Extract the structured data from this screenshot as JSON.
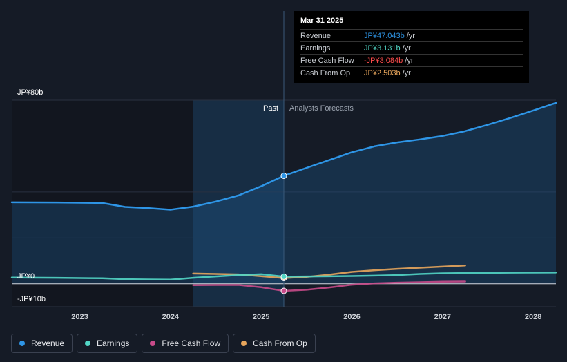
{
  "chart_data": {
    "type": "line",
    "title": "",
    "xlabel": "",
    "ylabel": "",
    "y_ticks": [
      {
        "value": 80,
        "label": "JP¥80b"
      },
      {
        "value": 0,
        "label": "JP¥0"
      },
      {
        "value": -10,
        "label": "-JP¥10b"
      }
    ],
    "ylim": [
      -10,
      80
    ],
    "xlim": [
      2022.25,
      2028.25
    ],
    "x_ticks": [
      2023,
      2024,
      2025,
      2026,
      2027,
      2028
    ],
    "past_label": "Past",
    "forecast_label": "Analysts Forecasts",
    "divider_x": 2025.25,
    "highlight_start_x": 2024.25,
    "series": [
      {
        "name": "Revenue",
        "color": "#2e95e6",
        "points": [
          [
            2022.25,
            35.5
          ],
          [
            2022.75,
            35.4
          ],
          [
            2023.25,
            35.2
          ],
          [
            2023.5,
            33.5
          ],
          [
            2023.75,
            33.0
          ],
          [
            2024.0,
            32.3
          ],
          [
            2024.25,
            33.6
          ],
          [
            2024.5,
            35.8
          ],
          [
            2024.75,
            38.5
          ],
          [
            2025.0,
            42.5
          ],
          [
            2025.25,
            47.043
          ],
          [
            2025.5,
            50.5
          ],
          [
            2025.75,
            53.9
          ],
          [
            2026.0,
            57.3
          ],
          [
            2026.25,
            59.9
          ],
          [
            2026.5,
            61.6
          ],
          [
            2026.75,
            62.9
          ],
          [
            2027.0,
            64.4
          ],
          [
            2027.25,
            66.5
          ],
          [
            2027.5,
            69.3
          ],
          [
            2027.75,
            72.3
          ],
          [
            2028.0,
            75.5
          ],
          [
            2028.25,
            78.8
          ]
        ]
      },
      {
        "name": "Earnings",
        "color": "#52d6c5",
        "points": [
          [
            2022.25,
            2.7
          ],
          [
            2022.75,
            2.6
          ],
          [
            2023.25,
            2.4
          ],
          [
            2023.5,
            2.0
          ],
          [
            2023.75,
            1.9
          ],
          [
            2024.0,
            1.8
          ],
          [
            2024.25,
            2.6
          ],
          [
            2024.5,
            3.2
          ],
          [
            2024.75,
            3.8
          ],
          [
            2025.0,
            4.2
          ],
          [
            2025.25,
            3.131
          ],
          [
            2025.5,
            3.2
          ],
          [
            2025.75,
            3.3
          ],
          [
            2026.0,
            3.4
          ],
          [
            2026.25,
            3.6
          ],
          [
            2026.5,
            3.8
          ],
          [
            2026.75,
            4.3
          ],
          [
            2027.0,
            4.6
          ],
          [
            2027.25,
            4.7
          ],
          [
            2027.5,
            4.8
          ],
          [
            2027.75,
            4.85
          ],
          [
            2028.0,
            4.9
          ],
          [
            2028.25,
            4.95
          ]
        ]
      },
      {
        "name": "Free Cash Flow",
        "color": "#c84b8a",
        "points": [
          [
            2024.25,
            -0.6
          ],
          [
            2024.5,
            -0.5
          ],
          [
            2024.75,
            -0.5
          ],
          [
            2025.0,
            -1.5
          ],
          [
            2025.25,
            -3.084
          ],
          [
            2025.5,
            -2.6
          ],
          [
            2025.75,
            -1.6
          ],
          [
            2026.0,
            -0.4
          ],
          [
            2026.25,
            0.2
          ],
          [
            2026.5,
            0.5
          ],
          [
            2026.75,
            0.7
          ],
          [
            2027.0,
            0.9
          ],
          [
            2027.25,
            1.0
          ]
        ]
      },
      {
        "name": "Cash From Op",
        "color": "#e8a65c",
        "points": [
          [
            2024.25,
            4.5
          ],
          [
            2024.5,
            4.3
          ],
          [
            2024.75,
            4.1
          ],
          [
            2025.0,
            3.3
          ],
          [
            2025.25,
            2.503
          ],
          [
            2025.5,
            3.0
          ],
          [
            2025.75,
            4.0
          ],
          [
            2026.0,
            5.2
          ],
          [
            2026.25,
            5.9
          ],
          [
            2026.5,
            6.5
          ],
          [
            2026.75,
            7.0
          ],
          [
            2027.0,
            7.5
          ],
          [
            2027.25,
            8.0
          ]
        ]
      }
    ]
  },
  "tooltip": {
    "date": "Mar 31 2025",
    "rows": [
      {
        "label": "Revenue",
        "value": "JP¥47.043b",
        "unit": "/yr",
        "color": "#2e95e6"
      },
      {
        "label": "Earnings",
        "value": "JP¥3.131b",
        "unit": "/yr",
        "color": "#52d6c5"
      },
      {
        "label": "Free Cash Flow",
        "value": "-JP¥3.084b",
        "unit": "/yr",
        "color": "#ff4d4d"
      },
      {
        "label": "Cash From Op",
        "value": "JP¥2.503b",
        "unit": "/yr",
        "color": "#e8a65c"
      }
    ]
  },
  "legend": [
    {
      "label": "Revenue",
      "color": "#2e95e6"
    },
    {
      "label": "Earnings",
      "color": "#52d6c5"
    },
    {
      "label": "Free Cash Flow",
      "color": "#c84b8a"
    },
    {
      "label": "Cash From Op",
      "color": "#e8a65c"
    }
  ]
}
